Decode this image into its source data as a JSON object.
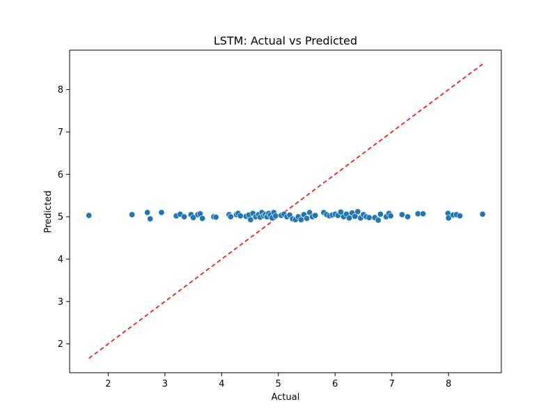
{
  "chart_data": {
    "type": "scatter",
    "title": "LSTM: Actual vs Predicted",
    "xlabel": "Actual",
    "ylabel": "Predicted",
    "xlim": [
      1.32,
      8.93
    ],
    "ylim": [
      1.32,
      8.93
    ],
    "xticks": [
      "2",
      "3",
      "4",
      "5",
      "6",
      "7",
      "8"
    ],
    "yticks": [
      "2",
      "3",
      "4",
      "5",
      "6",
      "7",
      "8"
    ],
    "grid": false,
    "point_color": "#1f77b4",
    "reference_line": {
      "style": "dashed",
      "color": "#ff0000",
      "from": [
        1.66,
        1.66
      ],
      "to": [
        8.6,
        8.6
      ]
    },
    "series": [
      {
        "x": [
          1.66,
          2.42,
          2.69,
          2.74,
          2.94,
          3.2,
          3.27,
          3.34,
          3.46,
          3.5,
          3.58,
          3.62,
          3.66,
          3.86,
          3.9,
          4.13,
          4.16,
          4.26,
          4.29,
          4.33,
          4.43,
          4.48,
          4.51,
          4.55,
          4.6,
          4.65,
          4.68,
          4.71,
          4.74,
          4.77,
          4.8,
          4.83,
          4.86,
          4.89,
          4.92,
          4.95,
          5.05,
          5.1,
          5.15,
          5.2,
          5.25,
          5.3,
          5.35,
          5.4,
          5.45,
          5.5,
          5.55,
          5.6,
          5.65,
          5.8,
          5.85,
          5.9,
          5.95,
          6.0,
          6.05,
          6.1,
          6.15,
          6.2,
          6.25,
          6.3,
          6.35,
          6.4,
          6.45,
          6.5,
          6.55,
          6.6,
          6.7,
          6.76,
          6.8,
          6.9,
          6.95,
          6.98,
          7.18,
          7.28,
          7.46,
          7.55,
          7.99,
          8.0,
          8.08,
          8.14,
          8.2,
          8.6
        ],
        "y": [
          5.03,
          5.05,
          5.1,
          4.95,
          5.1,
          5.02,
          5.06,
          5.0,
          5.05,
          4.98,
          5.05,
          5.07,
          4.96,
          5.0,
          4.99,
          5.05,
          5.0,
          5.05,
          5.08,
          5.02,
          5.01,
          5.04,
          4.93,
          5.08,
          5.0,
          5.05,
          4.99,
          5.1,
          5.02,
          5.05,
          5.0,
          5.08,
          5.04,
          4.97,
          5.1,
          5.02,
          5.03,
          5.06,
          5.0,
          5.04,
          4.95,
          4.93,
          5.0,
          4.93,
          5.05,
          4.96,
          5.1,
          5.0,
          5.03,
          5.1,
          5.05,
          5.02,
          5.04,
          5.06,
          5.03,
          5.11,
          5.0,
          5.06,
          4.97,
          5.09,
          5.01,
          5.12,
          4.97,
          5.05,
          5.0,
          4.98,
          4.98,
          4.92,
          5.06,
          5.0,
          5.08,
          5.02,
          5.05,
          5.0,
          5.07,
          5.07,
          5.08,
          4.97,
          5.04,
          5.05,
          5.02,
          5.06
        ]
      }
    ]
  }
}
